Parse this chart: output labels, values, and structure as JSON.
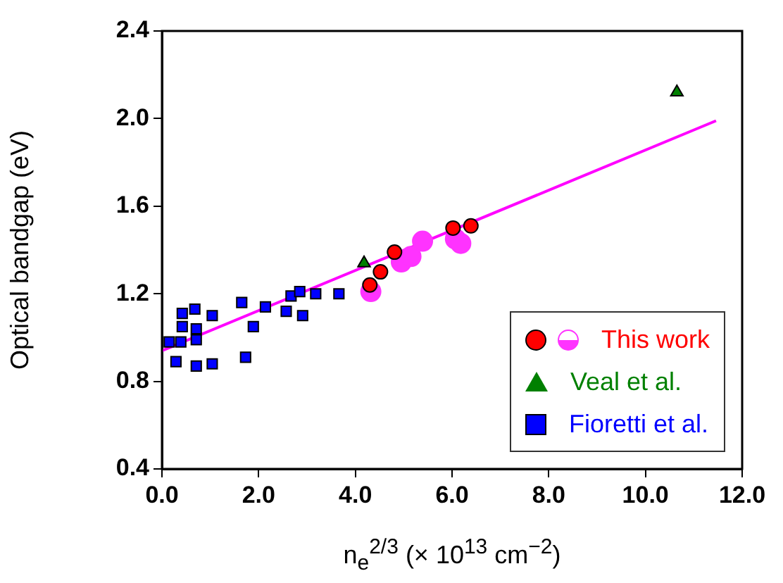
{
  "chart_data": {
    "type": "scatter",
    "xlabel": "n$_{e}$$^{2/3}$ (× 10$^{13}$ cm$^{−2}$)",
    "ylabel": "Optical bandgap (eV)",
    "xlim": [
      0,
      12
    ],
    "xticks": [
      {
        "value": 0,
        "label": "0.0"
      },
      {
        "value": 2,
        "label": "2.0"
      },
      {
        "value": 4,
        "label": "4.0"
      },
      {
        "value": 6,
        "label": "6.0"
      },
      {
        "value": 8,
        "label": "8.0"
      },
      {
        "value": 10,
        "label": "10.0"
      },
      {
        "value": 12,
        "label": "12.0"
      }
    ],
    "ylim": [
      0.4,
      2.4
    ],
    "yticks": [
      {
        "value": 0.4,
        "label": "0.4"
      },
      {
        "value": 0.8,
        "label": "0.8"
      },
      {
        "value": 1.2,
        "label": "1.2"
      },
      {
        "value": 1.6,
        "label": "1.6"
      },
      {
        "value": 2.0,
        "label": "2.0"
      },
      {
        "value": 2.4,
        "label": "2.4"
      }
    ],
    "legend": "bottom right",
    "series": [
      {
        "type": "line",
        "color": "#ff00ff",
        "x": [
          0,
          11.46
        ],
        "values": [
          0.94,
          1.99
        ],
        "marker": "none"
      },
      {
        "color": "#ff33ff",
        "marker": "circle",
        "x": [
          4.32,
          4.95,
          5.15,
          5.39,
          6.07,
          6.18
        ],
        "values": [
          1.21,
          1.345,
          1.37,
          1.44,
          1.45,
          1.43
        ]
      },
      {
        "name": "This work",
        "color": "#ff0000",
        "marker": "circle",
        "x": [
          4.3,
          4.52,
          4.81,
          6.02,
          6.39
        ],
        "values": [
          1.24,
          1.3,
          1.39,
          1.5,
          1.51
        ]
      },
      {
        "name": "Veal et al.",
        "color": "#008000",
        "marker": "triangle",
        "x": [
          4.18,
          10.65
        ],
        "values": [
          1.34,
          2.12
        ]
      },
      {
        "name": "Fioretti et al.",
        "color": "#0000ff",
        "marker": "square",
        "x": [
          0.15,
          0.29,
          0.42,
          0.68,
          0.42,
          0.71,
          0.71,
          0.39,
          0.71,
          1.04,
          1.04,
          1.65,
          1.73,
          1.89,
          2.14,
          2.57,
          2.67,
          2.85,
          2.91,
          3.18,
          3.66
        ],
        "values": [
          0.98,
          0.89,
          1.11,
          1.13,
          1.05,
          1.04,
          0.99,
          0.98,
          0.87,
          0.88,
          1.1,
          1.16,
          0.91,
          1.05,
          1.14,
          1.12,
          1.19,
          1.21,
          1.1,
          1.2,
          1.2
        ]
      }
    ]
  }
}
